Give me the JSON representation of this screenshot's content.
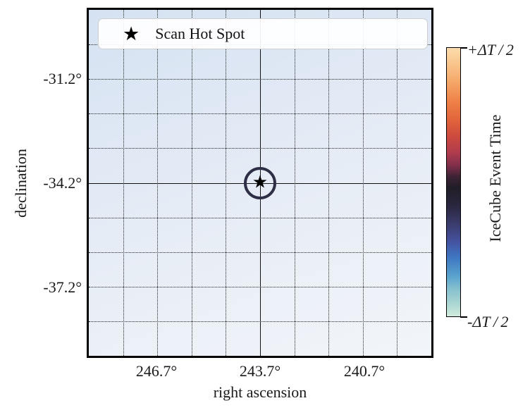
{
  "chart_data": {
    "type": "heatmap",
    "title": "",
    "xlabel": "right ascension",
    "ylabel": "declination",
    "x_tick_labels": [
      "246.7°",
      "243.7°",
      "240.7°"
    ],
    "y_tick_labels": [
      "-31.2°",
      "-34.2°",
      "-37.2°"
    ],
    "x_axis_range_deg": [
      248.7,
      238.7
    ],
    "y_axis_range_deg": [
      -29.2,
      -39.2
    ],
    "grid": {
      "intervals": 10,
      "solid_index": 5,
      "spacing_deg": 1,
      "style": "dotted"
    },
    "hotspot": {
      "ra_deg": 243.7,
      "dec_deg": -34.2,
      "marker_glyph": "★",
      "circle_color": "#2e2e46"
    },
    "legend": {
      "position": "upper left",
      "entries": [
        {
          "marker_glyph": "★",
          "label": "Scan Hot Spot"
        }
      ]
    },
    "colorbar": {
      "label": "IceCube Event Time",
      "max_label": "+ΔT / 2",
      "min_label": "-ΔT / 2",
      "gradient_stops": [
        {
          "pos": 0.0,
          "color": "#fcddad"
        },
        {
          "pos": 0.06,
          "color": "#f9c58c"
        },
        {
          "pos": 0.13,
          "color": "#f5a667"
        },
        {
          "pos": 0.2,
          "color": "#ee8148"
        },
        {
          "pos": 0.27,
          "color": "#e1633b"
        },
        {
          "pos": 0.33,
          "color": "#cd4a3e"
        },
        {
          "pos": 0.39,
          "color": "#b03c4e"
        },
        {
          "pos": 0.44,
          "color": "#7e2e4a"
        },
        {
          "pos": 0.48,
          "color": "#3c2334"
        },
        {
          "pos": 0.52,
          "color": "#211d27"
        },
        {
          "pos": 0.59,
          "color": "#2a2740"
        },
        {
          "pos": 0.65,
          "color": "#3a3a68"
        },
        {
          "pos": 0.72,
          "color": "#44519f"
        },
        {
          "pos": 0.78,
          "color": "#3f76c2"
        },
        {
          "pos": 0.85,
          "color": "#58a3cd"
        },
        {
          "pos": 0.9,
          "color": "#88c1cf"
        },
        {
          "pos": 0.96,
          "color": "#b0d9d3"
        },
        {
          "pos": 1.0,
          "color": "#d2ecdc"
        }
      ]
    },
    "map_gradient": [
      "#d5e2f2 0%",
      "#e7edf6 55%",
      "#f2f5f9 100%"
    ]
  }
}
